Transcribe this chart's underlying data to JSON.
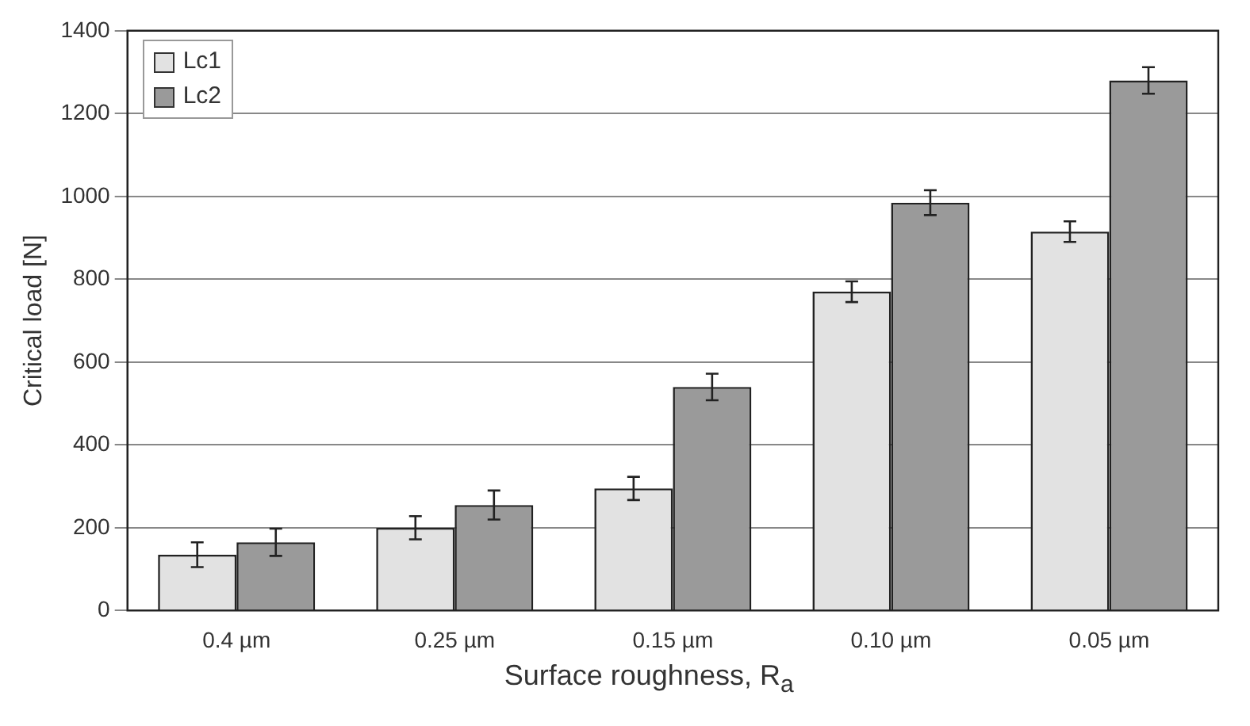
{
  "chart_data": {
    "type": "bar",
    "xlabel": "Surface roughness, R$_{a}$",
    "ylabel": "Critical load [N]",
    "categories": [
      "0.4 µm",
      "0.25 µm",
      "0.15 µm",
      "0.10 µm",
      "0.05 µm"
    ],
    "series": [
      {
        "name": "Lc1",
        "color": "#e2e2e2",
        "values": [
          135,
          200,
          295,
          770,
          915
        ],
        "errors": [
          30,
          28,
          28,
          25,
          25
        ]
      },
      {
        "name": "Lc2",
        "color": "#9a9a9a",
        "values": [
          165,
          255,
          540,
          985,
          1280
        ],
        "errors": [
          33,
          35,
          32,
          30,
          32
        ]
      }
    ],
    "ylim": [
      0,
      1400
    ],
    "yticks": [
      0,
      200,
      400,
      600,
      800,
      1000,
      1200,
      1400
    ],
    "grid": "y",
    "legend": "top left"
  }
}
